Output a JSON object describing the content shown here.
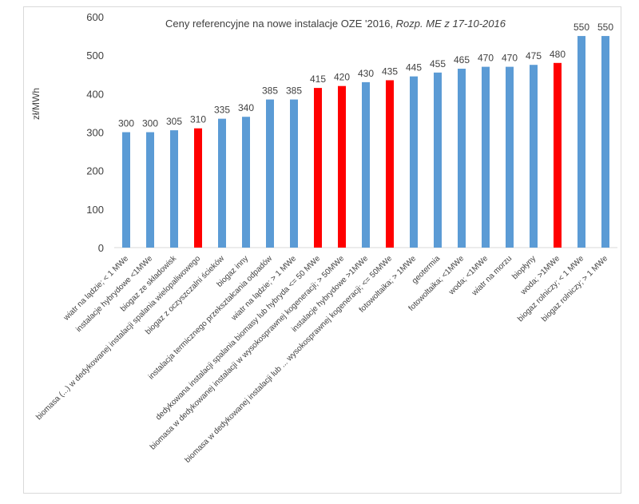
{
  "chart_data": {
    "type": "bar",
    "title": "Ceny referencyjne na nowe instalacje OZE '2016,",
    "subtitle": "Rozp. ME z 17-10-2016",
    "xlabel": "",
    "ylabel": "zł/MWh",
    "ylim": [
      0,
      600
    ],
    "yticks": [
      0,
      100,
      200,
      300,
      400,
      500,
      600
    ],
    "grid": false,
    "legend": "none",
    "colors": {
      "default": "#5b9bd5",
      "highlight": "#ff0000"
    },
    "categories": [
      "wiatr na lądzie; < 1 MWe",
      "instalacje hybrydowe <1MWe",
      "biogaz ze składowisk",
      "biomasa (...) w dedykowanej instalacji spalania wielopaliwowego",
      "biogaz z oczyszczalni ścieków",
      "biogaz inny",
      "instalacja termicznego przekształcania odpadów",
      "wiatr na lądzie; > 1 MWe",
      "dedykowana instalacji spalania biomasy lub hybryda <= 50 MWe",
      "biomasa w dedykowanej instalacji w wysokosprawnej kogeneracji; > 50MWe",
      "instalacje hybrydowe >1MWe",
      "biomasa w dedykowanej instalacji lub ... wysokosprawnej kogeneracji; <= 50MWe",
      "fotowoltaika; > 1MWe",
      "geotermia",
      "fotowoltaika; <1MWe",
      "woda; <1MWe",
      "wiatr na morzu",
      "biopłyny",
      "woda; >1MWe",
      "biogaz rolniczy; < 1 MWe",
      "biogaz rolniczy; > 1 MWe"
    ],
    "values": [
      300,
      300,
      305,
      310,
      335,
      340,
      385,
      385,
      415,
      420,
      430,
      435,
      445,
      455,
      465,
      470,
      470,
      475,
      480,
      550,
      550
    ],
    "highlighted": [
      false,
      false,
      false,
      true,
      false,
      false,
      false,
      false,
      true,
      true,
      false,
      true,
      false,
      false,
      false,
      false,
      false,
      false,
      true,
      false,
      false
    ]
  }
}
